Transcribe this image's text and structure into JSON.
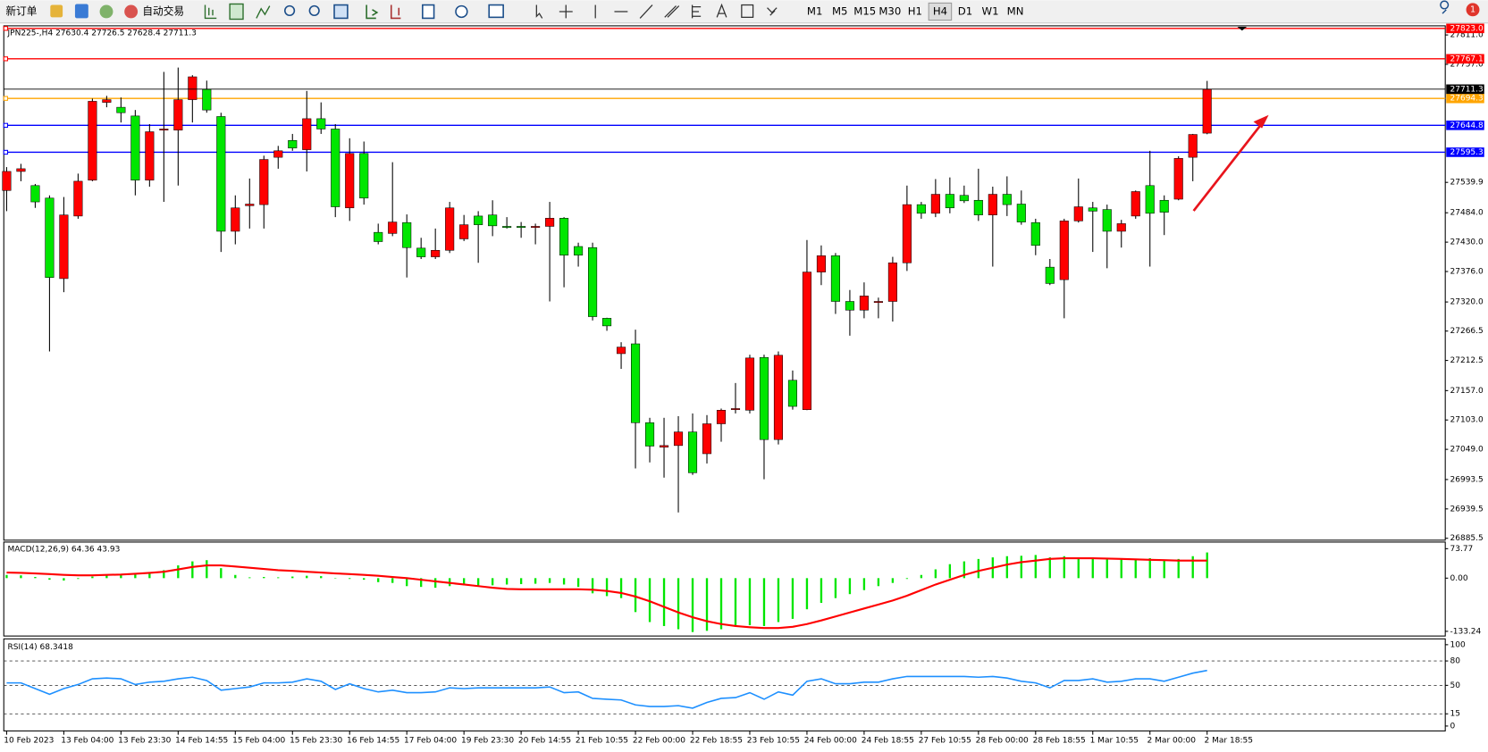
{
  "toolbar": {
    "new_order": "新订单",
    "auto_trading": "自动交易",
    "timeframes": [
      "M1",
      "M5",
      "M15",
      "M30",
      "H1",
      "H4",
      "D1",
      "W1",
      "MN"
    ],
    "notifications": 1
  },
  "chart_data": [
    {
      "type": "candlestick",
      "title": "JPN225-,H4",
      "categories": [
        "10 Feb 2023",
        null,
        null,
        null,
        "13 Feb 04:00",
        null,
        null,
        null,
        "13 Feb 23:30",
        null,
        null,
        null,
        "14 Feb 14:55",
        null,
        null,
        null,
        "15 Feb 04:00",
        null,
        null,
        null,
        "15 Feb 23:30",
        null,
        null,
        null,
        "16 Feb 14:55",
        null,
        null,
        null,
        "17 Feb 04:00",
        null,
        null,
        null,
        "19 Feb 23:30",
        null,
        null,
        null,
        "20 Feb 14:55",
        null,
        null,
        null,
        "21 Feb 10:55",
        null,
        null,
        null,
        "22 Feb 00:00",
        null,
        null,
        null,
        "22 Feb 18:55",
        null,
        null,
        null,
        "23 Feb 10:55",
        null,
        null,
        null,
        "24 Feb 00:00",
        null,
        null,
        null,
        "24 Feb 18:55",
        null,
        null,
        null,
        "27 Feb 10:55",
        null,
        null,
        null,
        "28 Feb 00:00",
        null,
        null,
        null,
        "28 Feb 18:55",
        null,
        null,
        null,
        "1 Mar 10:55",
        null,
        null,
        null,
        "2 Mar 00:00",
        null,
        null,
        null,
        "2 Mar 18:55"
      ],
      "open": [
        27525,
        27560,
        27534,
        27511,
        27363,
        27478,
        27544,
        27687,
        27678,
        27662,
        27544,
        27636,
        27636,
        27692,
        27711,
        27661,
        27450,
        27497,
        27499,
        27586,
        27617,
        27600,
        27657,
        27638,
        27493,
        27593,
        27448,
        27446,
        27466,
        27419,
        27403,
        27415,
        27436,
        27478,
        27480,
        27459,
        27459,
        27457,
        27459,
        27474,
        27422,
        27420,
        27290,
        27225,
        27243,
        27098,
        27053,
        27056,
        27081,
        27041,
        27096,
        27122,
        27121,
        27218,
        27067,
        27176,
        27122,
        27375,
        27405,
        27321,
        27305,
        27319,
        27321,
        27392,
        27499,
        27483,
        27518,
        27516,
        27507,
        27480,
        27518,
        27500,
        27466,
        27384,
        27361,
        27469,
        27493,
        27490,
        27450,
        27478,
        27534,
        27507,
        27509,
        27586,
        27630.4
      ],
      "high": [
        27568,
        27574,
        27537,
        27516,
        27513,
        27556,
        27694,
        27699,
        27696,
        27673,
        27647,
        27743,
        27751,
        27737,
        27727,
        27668,
        27516,
        27547,
        27589,
        27607,
        27629,
        27708,
        27687,
        27647,
        27621,
        27615,
        27464,
        27577,
        27481,
        27438,
        27455,
        27504,
        27480,
        27487,
        27507,
        27476,
        27467,
        27464,
        27504,
        27476,
        27429,
        27429,
        27291,
        27246,
        27269,
        27107,
        27107,
        27110,
        27115,
        27112,
        27124,
        27171,
        27223,
        27223,
        27229,
        27194,
        27434,
        27424,
        27410,
        27342,
        27356,
        27328,
        27403,
        27534,
        27504,
        27546,
        27549,
        27534,
        27565,
        27532,
        27551,
        27525,
        27473,
        27399,
        27473,
        27547,
        27504,
        27499,
        27471,
        27525,
        27598,
        27516,
        27588,
        27629,
        27726.5
      ],
      "low": [
        27487,
        27542,
        27493,
        27229,
        27338,
        27473,
        27542,
        27678,
        27650,
        27516,
        27532,
        27504,
        27534,
        27650,
        27668,
        27412,
        27426,
        27455,
        27455,
        27565,
        27598,
        27560,
        27629,
        27476,
        27469,
        27499,
        27426,
        27441,
        27365,
        27399,
        27399,
        27410,
        27432,
        27392,
        27441,
        27455,
        27438,
        27426,
        27321,
        27347,
        27385,
        27286,
        27267,
        27197,
        27014,
        27025,
        26997,
        26933,
        27002,
        27023,
        27063,
        27115,
        27115,
        26994,
        27058,
        27122,
        27121,
        27351,
        27298,
        27258,
        27290,
        27290,
        27284,
        27377,
        27473,
        27476,
        27483,
        27502,
        27469,
        27385,
        27478,
        27462,
        27406,
        27351,
        27290,
        27466,
        27412,
        27382,
        27420,
        27473,
        27385,
        27443,
        27507,
        27542,
        27628.4
      ],
      "close": [
        27560,
        27565,
        27504,
        27365,
        27480,
        27542,
        27689,
        27692,
        27668,
        27544,
        27633,
        27638,
        27692,
        27734,
        27673,
        27450,
        27493,
        27500,
        27582,
        27598,
        27603,
        27657,
        27638,
        27495,
        27593,
        27511,
        27431,
        27467,
        27420,
        27403,
        27415,
        27493,
        27462,
        27462,
        27460,
        27457,
        27457,
        27459,
        27474,
        27406,
        27406,
        27293,
        27276,
        27237,
        27098,
        27055,
        27056,
        27081,
        27006,
        27096,
        27121,
        27124,
        27217,
        27067,
        27222,
        27128,
        27375,
        27405,
        27321,
        27305,
        27331,
        27321,
        27392,
        27499,
        27483,
        27518,
        27493,
        27506,
        27480,
        27518,
        27499,
        27467,
        27424,
        27354,
        27469,
        27495,
        27487,
        27450,
        27464,
        27523,
        27483,
        27485,
        27584,
        27628,
        27711.3
      ],
      "up_color": "#ff0000",
      "down_color": "#00e600",
      "wick_color": "#000000",
      "ylim": [
        26882,
        27826
      ],
      "yticks": [
        {
          "value": 26885.5,
          "label": "26885.5"
        },
        {
          "value": 26939.5,
          "label": "26939.5"
        },
        {
          "value": 26993.5,
          "label": "26993.5"
        },
        {
          "value": 27049,
          "label": "27049.0"
        },
        {
          "value": 27103,
          "label": "27103.0"
        },
        {
          "value": 27157,
          "label": "27157.0"
        },
        {
          "value": 27212.5,
          "label": "27212.5"
        },
        {
          "value": 27266.5,
          "label": "27266.5"
        },
        {
          "value": 27320,
          "label": "27320.0"
        },
        {
          "value": 27376,
          "label": "27376.0"
        },
        {
          "value": 27430,
          "label": "27430.0"
        },
        {
          "value": 27484,
          "label": "27484.0"
        },
        {
          "value": 27539.9,
          "label": "27539.9"
        },
        {
          "value": 27757,
          "label": "27757.0"
        },
        {
          "value": 27811,
          "label": "27811.0"
        }
      ],
      "hlines": [
        {
          "value": 27823,
          "label": "27823.0",
          "color": "#ff0000"
        },
        {
          "value": 27767.1,
          "label": "27767.1",
          "color": "#ff0000"
        },
        {
          "value": 27694.3,
          "label": "27694.3",
          "color": "#ffa500"
        },
        {
          "value": 27644.8,
          "label": "27644.8",
          "color": "#0000ff"
        },
        {
          "value": 27595.3,
          "label": "27595.3",
          "color": "#0000ff"
        }
      ],
      "grid": false
    },
    {
      "type": "macd",
      "title": "MACD(12,26,9)",
      "series": [
        {
          "color": "#00e600",
          "values": [
            8,
            7,
            3,
            -4,
            -6,
            -2,
            4,
            8,
            10,
            12,
            12,
            20,
            32,
            42,
            45,
            25,
            8,
            2,
            3,
            2,
            4,
            6,
            5,
            -1,
            -2,
            -4,
            -10,
            -12,
            -20,
            -22,
            -24,
            -20,
            -18,
            -20,
            -18,
            -16,
            -15,
            -14,
            -12,
            -16,
            -22,
            -38,
            -45,
            -50,
            -85,
            -110,
            -120,
            -128,
            -135,
            -132,
            -128,
            -122,
            -118,
            -120,
            -110,
            -102,
            -78,
            -62,
            -50,
            -40,
            -30,
            -20,
            -12,
            -2,
            8,
            22,
            35,
            42,
            48,
            52,
            55,
            56,
            58,
            52,
            55,
            52,
            50,
            50,
            48,
            48,
            50,
            46,
            48,
            55,
            64.36
          ]
        },
        {
          "color": "#ff0000",
          "values": [
            14,
            13,
            12,
            10,
            8,
            7,
            7,
            8,
            9,
            11,
            13,
            16,
            22,
            28,
            32,
            32,
            29,
            26,
            23,
            20,
            18,
            16,
            14,
            12,
            10,
            8,
            6,
            3,
            0,
            -4,
            -8,
            -12,
            -16,
            -20,
            -24,
            -27,
            -28,
            -28,
            -28,
            -28,
            -28,
            -29,
            -32,
            -37,
            -46,
            -58,
            -72,
            -86,
            -98,
            -108,
            -115,
            -120,
            -123,
            -125,
            -125,
            -122,
            -115,
            -106,
            -96,
            -86,
            -76,
            -66,
            -56,
            -44,
            -30,
            -16,
            -4,
            8,
            18,
            26,
            34,
            40,
            44,
            48,
            50,
            50,
            50,
            49,
            48,
            47,
            46,
            45,
            44,
            44,
            43.93
          ]
        }
      ],
      "ylim": [
        -145,
        88
      ],
      "yticks": [
        73.77,
        {
          "value": 0,
          "label": "0.00"
        },
        -133.24
      ]
    },
    {
      "type": "line",
      "title": "RSI(14)",
      "series": [
        {
          "color": "#1e90ff",
          "values": [
            53,
            53,
            46,
            39,
            46,
            51,
            58,
            59,
            58,
            51,
            54,
            55,
            58,
            60,
            56,
            44,
            46,
            48,
            53,
            53,
            54,
            58,
            55,
            45,
            52,
            46,
            42,
            44,
            41,
            41,
            42,
            47,
            46,
            47,
            47,
            47,
            47,
            47,
            48,
            41,
            42,
            34,
            33,
            32,
            26,
            24,
            24,
            25,
            22,
            29,
            34,
            35,
            41,
            33,
            42,
            38,
            55,
            58,
            52,
            52,
            54,
            54,
            58,
            61,
            61,
            61,
            61,
            61,
            60,
            61,
            59,
            55,
            53,
            47,
            56,
            56,
            58,
            54,
            55,
            58,
            58,
            55,
            60,
            65,
            68.3418
          ]
        }
      ],
      "ylim": [
        -6,
        106
      ],
      "yticks": [
        100,
        80,
        50,
        15,
        0
      ],
      "levels": [
        80,
        50,
        15
      ]
    }
  ]
}
